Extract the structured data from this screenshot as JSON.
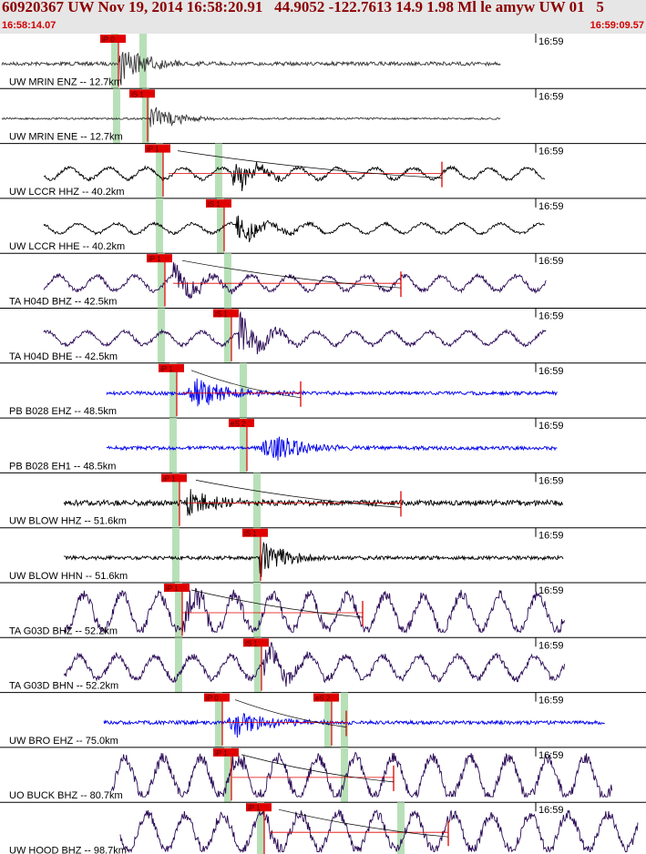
{
  "header": {
    "title": "60920367 UW Nov 19, 2014 16:58:20.91   44.9052 -122.7613 14.9 1.98 Ml le amyw UW 01   5",
    "start_time": "16:58:14.07",
    "end_time": "16:59:09.57"
  },
  "colors": {
    "header_text": "#8b0000",
    "pick": "#e00000",
    "pick_band": "#b8e0b8",
    "trace_black": "#000000",
    "trace_purple": "#2a0a55",
    "trace_blue": "#0000ee"
  },
  "chart_data": {
    "type": "seismogram-record",
    "time_window": {
      "start": "16:58:14.07",
      "end": "16:59:09.57"
    },
    "minute_tick_label": "16:59",
    "traces": [
      {
        "label": "UW MRIN ENZ -- 12.7km",
        "pick": "iP 0",
        "color": "gray"
      },
      {
        "label": "UW MRIN ENE -- 12.7km",
        "pick": "iS 1",
        "color": "gray"
      },
      {
        "label": "UW LCCR HHZ -- 40.2km",
        "pick": "iP 1",
        "color": "black"
      },
      {
        "label": "UW LCCR HHE -- 40.2km",
        "pick": "iS 1",
        "color": "black"
      },
      {
        "label": "TA H04D BHZ -- 42.5km",
        "pick": "iP 1",
        "color": "purple"
      },
      {
        "label": "TA H04D BHE -- 42.5km",
        "pick": "iS 1",
        "color": "purple"
      },
      {
        "label": "PB B028 EHZ -- 48.5km",
        "pick": "iP 1",
        "color": "blue"
      },
      {
        "label": "PB B028 EH1 -- 48.5km",
        "pick": "eS 2",
        "color": "blue"
      },
      {
        "label": "UW BLOW HHZ -- 51.6km",
        "pick": "iP 1",
        "color": "black"
      },
      {
        "label": "UW BLOW HHN -- 51.6km",
        "pick": "iS 1",
        "color": "black"
      },
      {
        "label": "TA G03D BHZ -- 52.2km",
        "pick": "iP 1",
        "color": "purple"
      },
      {
        "label": "TA G03D BHN -- 52.2km",
        "pick": "iS 1",
        "color": "purple"
      },
      {
        "label": "UW BRO EHZ -- 75.0km",
        "pick": "iP 0",
        "pick2": "eS 2",
        "color": "blue"
      },
      {
        "label": "UO BUCK BHZ -- 80.7km",
        "pick": "iP 1",
        "color": "purple"
      },
      {
        "label": "UW HOOD BHZ -- 98.7km",
        "pick": "iP 1",
        "color": "purple"
      }
    ]
  }
}
